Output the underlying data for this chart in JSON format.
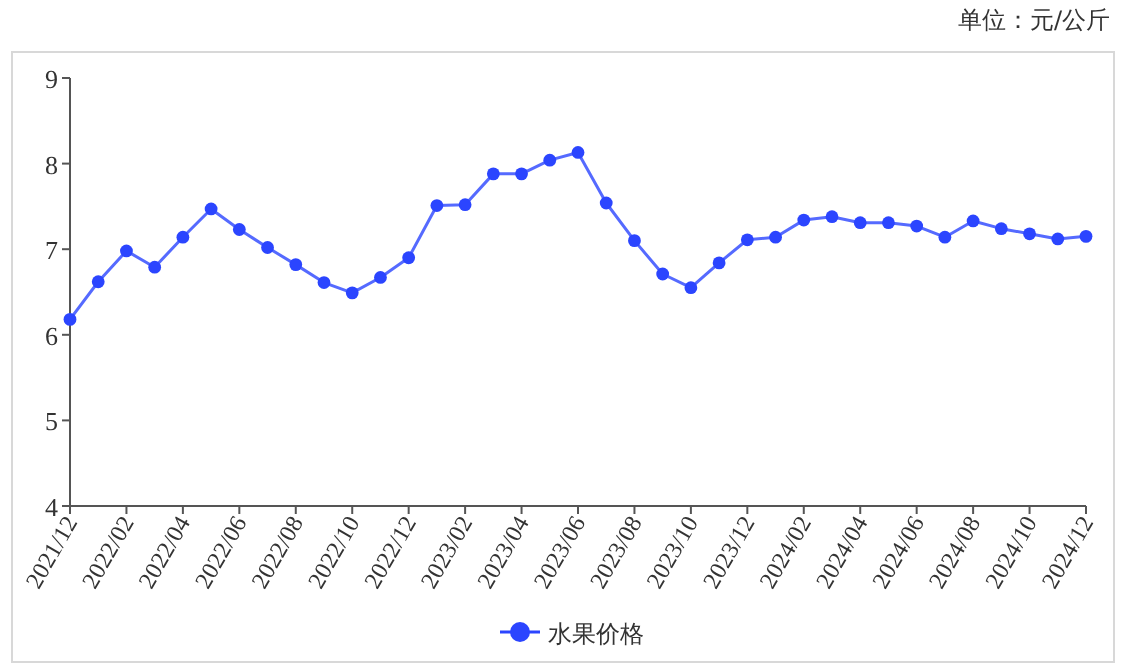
{
  "chart_data": {
    "type": "line",
    "annotations": [
      "单位：元/公斤"
    ],
    "categories": [
      "2021/12",
      null,
      "2022/02",
      null,
      "2022/04",
      null,
      "2022/06",
      null,
      "2022/08",
      null,
      "2022/10",
      null,
      "2022/12",
      null,
      "2023/02",
      null,
      "2023/04",
      null,
      "2023/06",
      null,
      "2023/08",
      null,
      "2023/10",
      null,
      "2023/12",
      null,
      "2024/02",
      null,
      "2024/04",
      null,
      "2024/06",
      null,
      "2024/08",
      null,
      "2024/10",
      null,
      "2024/12"
    ],
    "series": [
      {
        "name": "水果价格",
        "color": "#2b45ff",
        "values": [
          6.18,
          6.62,
          6.98,
          6.79,
          7.14,
          7.47,
          7.23,
          7.02,
          6.82,
          6.61,
          6.49,
          6.67,
          6.9,
          7.51,
          7.52,
          7.88,
          7.88,
          8.04,
          8.13,
          7.54,
          7.1,
          6.71,
          6.55,
          6.84,
          7.11,
          7.14,
          7.34,
          7.38,
          7.31,
          7.31,
          7.27,
          7.14,
          7.33,
          7.24,
          7.18,
          7.12,
          7.15
        ]
      }
    ],
    "ylim": [
      4,
      9
    ],
    "yticks": [
      4,
      5,
      6,
      7,
      8,
      9
    ],
    "marker": "circle",
    "legend": "bottom",
    "grid": false
  }
}
